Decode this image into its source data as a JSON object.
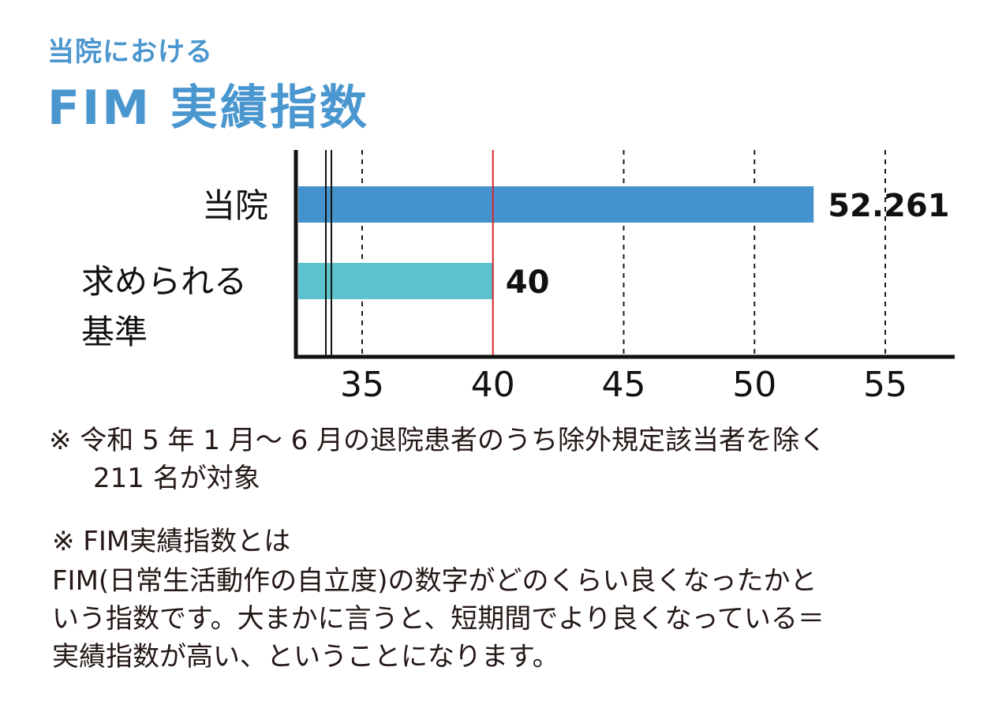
{
  "header": {
    "subtitle": "当院における",
    "title": "FIM 実績指数"
  },
  "chart_data": {
    "type": "bar",
    "orientation": "horizontal",
    "categories": [
      "当院",
      "求められる基準"
    ],
    "category_lines": [
      [
        "当院"
      ],
      [
        "求められる",
        "基準"
      ]
    ],
    "values": [
      52.261,
      40
    ],
    "value_labels": [
      "52.261",
      "40"
    ],
    "bar_colors": [
      "#4593cc",
      "#5bc2ce"
    ],
    "reference_line": {
      "value": 40,
      "color": "#d7252d"
    },
    "xlim": [
      33.3,
      57.5
    ],
    "axis_break": true,
    "xticks": [
      35,
      40,
      45,
      50,
      55
    ],
    "dashed_gridlines": [
      35,
      45,
      50,
      55
    ],
    "title": "",
    "xlabel": "",
    "ylabel": ""
  },
  "notes": {
    "note1_line1": "※ 令和 5 年 1 月～ 6 月の退院患者のうち除外規定該当者を除く",
    "note1_line2": "211 名が対象",
    "note2_heading": "※ FIM実績指数とは",
    "description_lines": [
      "FIM(日常生活動作の自立度)の数字がどのくらい良くなったかと",
      "いう指数です。大まかに言うと、短期間でより良くなっている＝",
      "実績指数が高い、ということになります。"
    ]
  }
}
